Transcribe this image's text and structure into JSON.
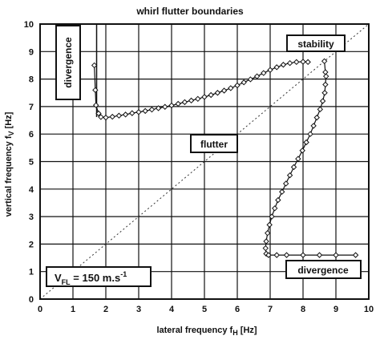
{
  "chart_data": {
    "type": "line",
    "title": "whirl flutter boundaries",
    "xlabel": "lateral frequency  f",
    "xlabel_sub": "H",
    "xlabel_unit": " [Hz]",
    "ylabel": "vertical frequency  f",
    "ylabel_sub": "V",
    "ylabel_unit": " [Hz]",
    "xlim": [
      0,
      10
    ],
    "ylim": [
      0,
      10
    ],
    "x_ticks": [
      "0",
      "1",
      "2",
      "3",
      "4",
      "5",
      "6",
      "7",
      "8",
      "9",
      "10"
    ],
    "y_ticks": [
      "0",
      "1",
      "2",
      "3",
      "4",
      "5",
      "6",
      "7",
      "8",
      "9",
      "10"
    ],
    "grid": true,
    "diagonal_reference": [
      [
        0,
        0
      ],
      [
        10,
        10
      ]
    ],
    "series": [
      {
        "marker": "diamond-open",
        "points": [
          [
            1.65,
            8.5
          ],
          [
            1.68,
            7.6
          ],
          [
            1.7,
            7.05
          ],
          [
            1.78,
            6.75
          ],
          [
            1.85,
            6.62
          ],
          [
            2.0,
            6.6
          ],
          [
            2.2,
            6.63
          ],
          [
            2.4,
            6.67
          ],
          [
            2.6,
            6.71
          ],
          [
            2.8,
            6.76
          ],
          [
            3.0,
            6.8
          ],
          [
            3.2,
            6.84
          ],
          [
            3.4,
            6.89
          ],
          [
            3.6,
            6.94
          ],
          [
            3.8,
            6.99
          ],
          [
            4.0,
            7.04
          ],
          [
            4.2,
            7.1
          ],
          [
            4.4,
            7.16
          ],
          [
            4.6,
            7.22
          ],
          [
            4.8,
            7.28
          ],
          [
            5.0,
            7.35
          ],
          [
            5.2,
            7.42
          ],
          [
            5.4,
            7.5
          ],
          [
            5.6,
            7.58
          ],
          [
            5.8,
            7.67
          ],
          [
            6.0,
            7.77
          ],
          [
            6.2,
            7.88
          ],
          [
            6.4,
            7.99
          ],
          [
            6.6,
            8.1
          ],
          [
            6.8,
            8.22
          ],
          [
            7.0,
            8.33
          ],
          [
            7.2,
            8.43
          ],
          [
            7.4,
            8.52
          ],
          [
            7.6,
            8.58
          ],
          [
            7.8,
            8.62
          ],
          [
            8.0,
            8.63
          ],
          [
            8.15,
            8.62
          ]
        ]
      },
      {
        "marker": "diamond-open",
        "points": [
          [
            8.65,
            8.65
          ],
          [
            8.68,
            8.25
          ],
          [
            8.7,
            8.1
          ],
          [
            8.68,
            7.8
          ],
          [
            8.66,
            7.5
          ],
          [
            8.6,
            7.2
          ],
          [
            8.52,
            6.9
          ],
          [
            8.42,
            6.6
          ],
          [
            8.32,
            6.3
          ],
          [
            8.22,
            6.0
          ],
          [
            8.1,
            5.7
          ],
          [
            7.98,
            5.4
          ],
          [
            7.85,
            5.1
          ],
          [
            7.72,
            4.8
          ],
          [
            7.6,
            4.5
          ],
          [
            7.48,
            4.2
          ],
          [
            7.36,
            3.9
          ],
          [
            7.24,
            3.6
          ],
          [
            7.14,
            3.3
          ],
          [
            7.05,
            3.0
          ],
          [
            6.98,
            2.7
          ],
          [
            6.92,
            2.4
          ],
          [
            6.88,
            2.1
          ],
          [
            6.86,
            1.85
          ],
          [
            6.88,
            1.65
          ],
          [
            6.95,
            1.6
          ],
          [
            7.2,
            1.6
          ],
          [
            7.5,
            1.6
          ],
          [
            8.0,
            1.6
          ],
          [
            8.5,
            1.6
          ],
          [
            9.0,
            1.6
          ],
          [
            9.6,
            1.6
          ]
        ]
      }
    ],
    "vertical_line_x": 1.72,
    "annotations": {
      "divergence_top": "divergence",
      "stability": "stability",
      "flutter": "flutter",
      "divergence_bottom": "divergence",
      "vfl_main": "V",
      "vfl_sub": "FL",
      "vfl_rest": " = 150 m.s",
      "vfl_sup": "-1"
    }
  }
}
